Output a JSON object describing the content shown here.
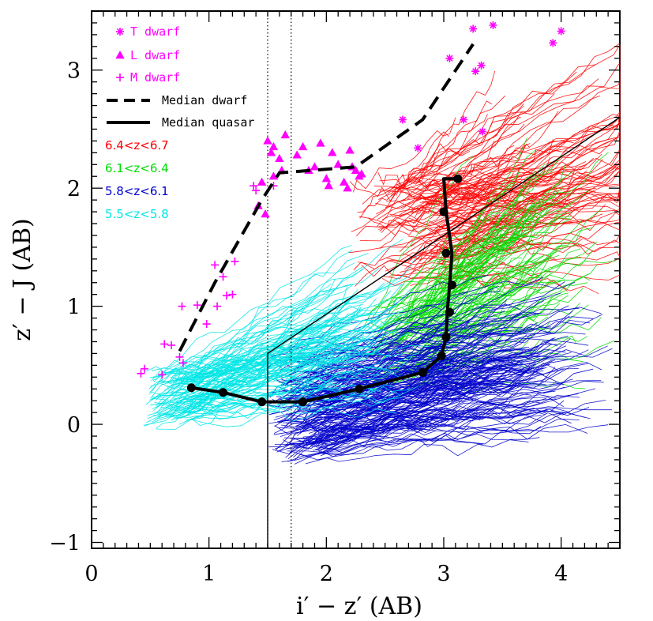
{
  "chart_data": {
    "type": "scatter",
    "title": "",
    "xlabel": "i′ − z′ (AB)",
    "ylabel": "z′ − J (AB)",
    "xlim": [
      0,
      4.5
    ],
    "ylim": [
      -1.05,
      3.5
    ],
    "x_ticks": [
      0,
      1,
      2,
      3,
      4
    ],
    "y_ticks": [
      -1,
      0,
      1,
      2,
      3
    ],
    "x_tick_labels": [
      "0",
      "1",
      "2",
      "3",
      "4"
    ],
    "y_tick_labels": [
      "−1",
      "0",
      "1",
      "2",
      "3"
    ],
    "legend": [
      {
        "label": "T dwarf",
        "marker": "asterisk",
        "color": "#ff00ff"
      },
      {
        "label": "L dwarf",
        "marker": "triangle",
        "color": "#ff00ff"
      },
      {
        "label": "M dwarf",
        "marker": "plus",
        "color": "#ff00ff"
      },
      {
        "label": "Median dwarf",
        "style": "dashed",
        "color": "#000000"
      },
      {
        "label": "Median quasar",
        "style": "solid",
        "color": "#000000"
      },
      {
        "label": "6.4<z<6.7",
        "color": "#ff0000"
      },
      {
        "label": "6.1<z<6.4",
        "color": "#00dd00"
      },
      {
        "label": "5.8<z<6.1",
        "color": "#0000cc"
      },
      {
        "label": "5.5<z<5.8",
        "color": "#00e5e5"
      }
    ],
    "series": [
      {
        "name": "T dwarf",
        "marker": "asterisk",
        "x": [
          3.25,
          3.42,
          3.93,
          4.0,
          3.05,
          3.27,
          3.32,
          3.17,
          2.78,
          2.65,
          3.33
        ],
        "y": [
          3.35,
          3.38,
          3.23,
          3.33,
          3.1,
          2.99,
          3.04,
          2.58,
          2.34,
          2.58,
          2.48
        ]
      },
      {
        "name": "L dwarf",
        "marker": "triangle",
        "x": [
          1.5,
          1.53,
          1.55,
          1.65,
          1.55,
          1.8,
          1.95,
          2.05,
          2.1,
          2.2,
          2.25,
          2.3,
          1.45,
          1.6,
          1.75,
          1.9,
          2.0,
          2.15,
          2.22,
          2.28,
          1.42,
          1.48,
          1.62,
          1.85,
          2.18,
          2.02
        ],
        "y": [
          2.4,
          2.3,
          2.35,
          2.45,
          2.1,
          2.35,
          2.38,
          2.3,
          2.2,
          2.32,
          2.15,
          2.12,
          2.05,
          2.25,
          2.28,
          2.18,
          2.08,
          2.05,
          2.18,
          2.1,
          1.85,
          1.78,
          2.15,
          2.15,
          2.0,
          2.02
        ]
      },
      {
        "name": "M dwarf",
        "marker": "plus",
        "x": [
          0.42,
          0.45,
          0.6,
          0.62,
          0.68,
          0.75,
          0.78,
          0.77,
          0.9,
          0.98,
          1.05,
          1.07,
          1.12,
          1.15,
          1.2,
          1.22,
          1.38,
          1.4,
          1.55
        ],
        "y": [
          0.43,
          0.47,
          0.42,
          0.68,
          0.67,
          0.57,
          0.52,
          1.0,
          1.01,
          0.85,
          1.35,
          1.0,
          1.25,
          1.09,
          1.1,
          1.38,
          2.02,
          1.98,
          2.02
        ]
      },
      {
        "name": "Median dwarf",
        "style": "dashed",
        "x": [
          0.75,
          1.05,
          1.45,
          1.6,
          2.25,
          2.82,
          3.25
        ],
        "y": [
          0.62,
          1.2,
          1.9,
          2.13,
          2.18,
          2.58,
          3.22
        ]
      },
      {
        "name": "Median quasar",
        "style": "solid",
        "x": [
          0.85,
          1.12,
          1.45,
          1.8,
          2.28,
          2.82,
          2.98,
          3.02,
          3.03,
          3.05,
          3.07,
          3.02,
          3.0,
          3.12
        ],
        "y": [
          0.31,
          0.27,
          0.19,
          0.19,
          0.3,
          0.44,
          0.58,
          0.74,
          0.95,
          1.18,
          1.45,
          1.8,
          2.08,
          2.08
        ],
        "markers_x": [
          0.85,
          1.12,
          1.45,
          1.8,
          2.28,
          2.82,
          2.98,
          3.02,
          3.05,
          3.07,
          3.02,
          3.0,
          3.12
        ],
        "markers_y": [
          0.31,
          0.27,
          0.19,
          0.19,
          0.3,
          0.44,
          0.58,
          0.74,
          0.95,
          1.18,
          1.45,
          1.8,
          2.08
        ]
      }
    ],
    "track_bands": [
      {
        "name": "6.4<z<6.7",
        "color": "#ff0000",
        "count": 130,
        "x_start": [
          2.2,
          3.1
        ],
        "y_start": [
          1.2,
          2.1
        ],
        "dx": [
          0.7,
          2.5
        ],
        "dy": [
          -0.2,
          1.2
        ]
      },
      {
        "name": "6.1<z<6.4",
        "color": "#00dd00",
        "count": 110,
        "x_start": [
          2.3,
          2.9
        ],
        "y_start": [
          0.3,
          1.0
        ],
        "dx": [
          0.9,
          1.6
        ],
        "dy": [
          0.0,
          1.5
        ]
      },
      {
        "name": "5.8<z<6.1",
        "color": "#0000cc",
        "count": 200,
        "x_start": [
          1.5,
          2.0
        ],
        "y_start": [
          -0.3,
          0.6
        ],
        "dx": [
          1.3,
          2.6
        ],
        "dy": [
          0.1,
          0.8
        ]
      },
      {
        "name": "5.5<z<5.8",
        "color": "#00e5e5",
        "count": 120,
        "x_start": [
          0.45,
          0.9
        ],
        "y_start": [
          0.0,
          0.45
        ],
        "dx": [
          1.3,
          2.1
        ],
        "dy": [
          0.1,
          1.1
        ]
      }
    ],
    "selection_lines": {
      "solid": [
        [
          1.5,
          -1.05
        ],
        [
          1.5,
          0.6
        ],
        [
          4.5,
          2.6
        ]
      ],
      "dotted_x": [
        1.5,
        1.7
      ]
    }
  }
}
